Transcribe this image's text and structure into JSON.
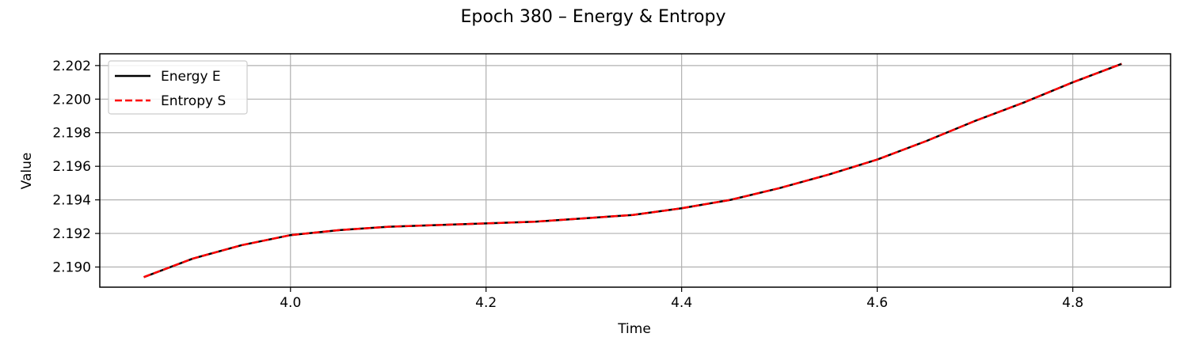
{
  "chart_data": {
    "type": "line",
    "title": "Epoch 380 – Energy & Entropy",
    "xlabel": "Time",
    "ylabel": "Value",
    "xlim": [
      3.805,
      4.9
    ],
    "ylim": [
      2.1888,
      2.2027
    ],
    "xticks": [
      4.0,
      4.2,
      4.4,
      4.6,
      4.8
    ],
    "xtick_labels": [
      "4.0",
      "4.2",
      "4.4",
      "4.6",
      "4.8"
    ],
    "yticks": [
      2.19,
      2.192,
      2.194,
      2.196,
      2.198,
      2.2,
      2.202
    ],
    "ytick_labels": [
      "2.190",
      "2.192",
      "2.194",
      "2.196",
      "2.198",
      "2.200",
      "2.202"
    ],
    "grid": true,
    "legend_position": "upper-left",
    "x": [
      3.85,
      3.9,
      3.95,
      4.0,
      4.05,
      4.1,
      4.15,
      4.2,
      4.25,
      4.3,
      4.35,
      4.4,
      4.45,
      4.5,
      4.55,
      4.6,
      4.65,
      4.7,
      4.75,
      4.8,
      4.85
    ],
    "series": [
      {
        "name": "Energy E",
        "color": "#000000",
        "style": "solid",
        "values": [
          2.1894,
          2.1905,
          2.1913,
          2.1919,
          2.1922,
          2.1924,
          2.1925,
          2.1926,
          2.1927,
          2.1929,
          2.1931,
          2.1935,
          2.194,
          2.1947,
          2.1955,
          2.1964,
          2.1975,
          2.1987,
          2.1998,
          2.201,
          2.2021
        ]
      },
      {
        "name": "Entropy S",
        "color": "#ff0000",
        "style": "dashed",
        "values": [
          2.1894,
          2.1905,
          2.1913,
          2.1919,
          2.1922,
          2.1924,
          2.1925,
          2.1926,
          2.1927,
          2.1929,
          2.1931,
          2.1935,
          2.194,
          2.1947,
          2.1955,
          2.1964,
          2.1975,
          2.1987,
          2.1998,
          2.201,
          2.2021
        ]
      }
    ]
  }
}
